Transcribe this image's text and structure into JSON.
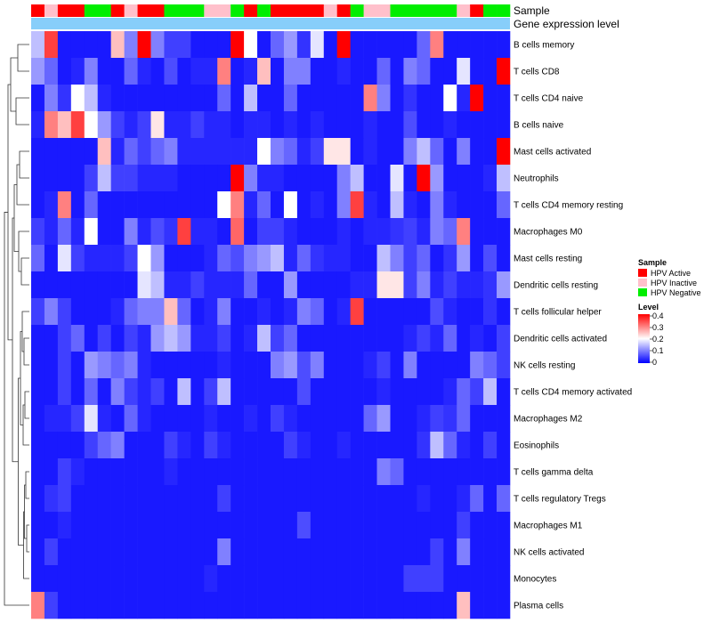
{
  "chart_data": {
    "type": "heatmap",
    "annotation_labels": {
      "sample": "Sample",
      "expression": "Gene expression level"
    },
    "rows": [
      "B cells memory",
      "T cells CD8",
      "T cells CD4 naive",
      "B cells naive",
      "Mast cells activated",
      "Neutrophils",
      "T cells CD4 memory resting",
      "Macrophages M0",
      "Mast cells resting",
      "Dendritic cells resting",
      "T cells follicular helper",
      "Dendritic cells activated",
      "NK cells resting",
      "T cells CD4 memory activated",
      "Macrophages M2",
      "Eosinophils",
      "T cells gamma delta",
      "T cells regulatory  Tregs",
      "Macrophages M1",
      "NK cells activated",
      "Monocytes",
      "Plasma cells"
    ],
    "sample_groups": [
      "A",
      "I",
      "A",
      "A",
      "N",
      "N",
      "A",
      "I",
      "A",
      "A",
      "N",
      "N",
      "N",
      "I",
      "I",
      "N",
      "A",
      "N",
      "A",
      "A",
      "A",
      "A",
      "I",
      "A",
      "N",
      "I",
      "I",
      "N",
      "N",
      "N",
      "N",
      "N",
      "I",
      "A",
      "N",
      "N"
    ],
    "values": [
      [
        0.15,
        0.35,
        0.02,
        0.02,
        0.02,
        0.02,
        0.25,
        0.1,
        0.4,
        0.1,
        0.05,
        0.05,
        0.02,
        0.02,
        0.02,
        0.4,
        0.2,
        0.02,
        0.08,
        0.12,
        0.04,
        0.18,
        0.02,
        0.4,
        0.02,
        0.02,
        0.02,
        0.02,
        0.02,
        0.08,
        0.3,
        0.02,
        0.02,
        0.02,
        0.02,
        0.02
      ],
      [
        0.12,
        0.08,
        0.02,
        0.03,
        0.1,
        0.02,
        0.02,
        0.08,
        0.03,
        0.02,
        0.06,
        0.02,
        0.03,
        0.03,
        0.3,
        0.02,
        0.03,
        0.25,
        0.02,
        0.1,
        0.1,
        0.02,
        0.02,
        0.03,
        0.02,
        0.02,
        0.08,
        0.02,
        0.1,
        0.08,
        0.02,
        0.02,
        0.18,
        0.02,
        0.02,
        0.4
      ],
      [
        0.02,
        0.1,
        0.04,
        0.2,
        0.15,
        0.03,
        0.02,
        0.02,
        0.02,
        0.02,
        0.02,
        0.02,
        0.02,
        0.02,
        0.08,
        0.02,
        0.15,
        0.02,
        0.02,
        0.08,
        0.02,
        0.02,
        0.02,
        0.02,
        0.02,
        0.3,
        0.1,
        0.02,
        0.04,
        0.02,
        0.02,
        0.2,
        0.03,
        0.4,
        0.02,
        0.02
      ],
      [
        0.03,
        0.3,
        0.25,
        0.35,
        0.2,
        0.12,
        0.05,
        0.03,
        0.05,
        0.22,
        0.03,
        0.03,
        0.05,
        0.03,
        0.03,
        0.02,
        0.03,
        0.03,
        0.02,
        0.03,
        0.02,
        0.03,
        0.02,
        0.02,
        0.02,
        0.03,
        0.02,
        0.02,
        0.06,
        0.02,
        0.02,
        0.03,
        0.02,
        0.02,
        0.02,
        0.02
      ],
      [
        0.02,
        0.02,
        0.02,
        0.02,
        0.02,
        0.25,
        0.03,
        0.08,
        0.05,
        0.08,
        0.1,
        0.03,
        0.03,
        0.03,
        0.03,
        0.03,
        0.03,
        0.2,
        0.1,
        0.08,
        0.03,
        0.05,
        0.22,
        0.22,
        0.02,
        0.03,
        0.02,
        0.02,
        0.1,
        0.15,
        0.08,
        0.02,
        0.1,
        0.02,
        0.02,
        0.4
      ],
      [
        0.02,
        0.02,
        0.02,
        0.02,
        0.05,
        0.15,
        0.05,
        0.05,
        0.03,
        0.03,
        0.03,
        0.02,
        0.02,
        0.02,
        0.02,
        0.4,
        0.1,
        0.03,
        0.03,
        0.02,
        0.02,
        0.02,
        0.02,
        0.1,
        0.15,
        0.02,
        0.02,
        0.18,
        0.02,
        0.4,
        0.12,
        0.02,
        0.02,
        0.02,
        0.03,
        0.15
      ],
      [
        0.02,
        0.03,
        0.3,
        0.02,
        0.08,
        0.02,
        0.02,
        0.02,
        0.02,
        0.02,
        0.02,
        0.02,
        0.02,
        0.02,
        0.2,
        0.3,
        0.03,
        0.08,
        0.02,
        0.2,
        0.02,
        0.03,
        0.02,
        0.1,
        0.35,
        0.03,
        0.02,
        0.15,
        0.03,
        0.02,
        0.1,
        0.03,
        0.02,
        0.02,
        0.02,
        0.08
      ],
      [
        0.05,
        0.03,
        0.08,
        0.03,
        0.2,
        0.02,
        0.02,
        0.1,
        0.03,
        0.06,
        0.04,
        0.35,
        0.03,
        0.03,
        0.02,
        0.32,
        0.02,
        0.05,
        0.05,
        0.03,
        0.02,
        0.02,
        0.02,
        0.03,
        0.02,
        0.03,
        0.03,
        0.04,
        0.05,
        0.03,
        0.1,
        0.08,
        0.3,
        0.02,
        0.02,
        0.02
      ],
      [
        0.08,
        0.02,
        0.18,
        0.05,
        0.03,
        0.03,
        0.03,
        0.05,
        0.2,
        0.12,
        0.02,
        0.02,
        0.02,
        0.03,
        0.08,
        0.06,
        0.1,
        0.12,
        0.15,
        0.03,
        0.08,
        0.04,
        0.03,
        0.03,
        0.02,
        0.02,
        0.15,
        0.1,
        0.05,
        0.08,
        0.02,
        0.04,
        0.12,
        0.02,
        0.06,
        0.02
      ],
      [
        0.02,
        0.02,
        0.02,
        0.02,
        0.02,
        0.02,
        0.02,
        0.02,
        0.18,
        0.15,
        0.03,
        0.03,
        0.05,
        0.03,
        0.03,
        0.03,
        0.08,
        0.02,
        0.02,
        0.12,
        0.02,
        0.02,
        0.02,
        0.02,
        0.03,
        0.03,
        0.22,
        0.22,
        0.05,
        0.1,
        0.03,
        0.05,
        0.03,
        0.03,
        0.04,
        0.12
      ],
      [
        0.05,
        0.1,
        0.05,
        0.02,
        0.02,
        0.02,
        0.03,
        0.08,
        0.1,
        0.1,
        0.25,
        0.08,
        0.02,
        0.03,
        0.1,
        0.02,
        0.02,
        0.03,
        0.02,
        0.03,
        0.1,
        0.08,
        0.02,
        0.03,
        0.35,
        0.02,
        0.02,
        0.02,
        0.02,
        0.02,
        0.06,
        0.03,
        0.02,
        0.02,
        0.04,
        0.02
      ],
      [
        0.02,
        0.02,
        0.05,
        0.08,
        0.02,
        0.05,
        0.02,
        0.05,
        0.03,
        0.12,
        0.15,
        0.12,
        0.03,
        0.03,
        0.05,
        0.02,
        0.03,
        0.15,
        0.05,
        0.08,
        0.02,
        0.02,
        0.02,
        0.02,
        0.02,
        0.02,
        0.02,
        0.02,
        0.03,
        0.05,
        0.03,
        0.08,
        0.02,
        0.03,
        0.02,
        0.05
      ],
      [
        0.02,
        0.02,
        0.05,
        0.02,
        0.12,
        0.1,
        0.08,
        0.1,
        0.03,
        0.02,
        0.02,
        0.02,
        0.02,
        0.02,
        0.03,
        0.02,
        0.02,
        0.02,
        0.1,
        0.12,
        0.06,
        0.1,
        0.02,
        0.02,
        0.02,
        0.03,
        0.05,
        0.02,
        0.1,
        0.02,
        0.02,
        0.02,
        0.02,
        0.1,
        0.08,
        0.05
      ],
      [
        0.02,
        0.02,
        0.05,
        0.02,
        0.08,
        0.02,
        0.1,
        0.05,
        0.03,
        0.05,
        0.02,
        0.15,
        0.02,
        0.05,
        0.15,
        0.02,
        0.02,
        0.02,
        0.02,
        0.02,
        0.06,
        0.02,
        0.02,
        0.02,
        0.02,
        0.02,
        0.03,
        0.02,
        0.02,
        0.02,
        0.02,
        0.03,
        0.08,
        0.05,
        0.15,
        0.02
      ],
      [
        0.02,
        0.03,
        0.03,
        0.05,
        0.18,
        0.03,
        0.02,
        0.08,
        0.03,
        0.02,
        0.02,
        0.02,
        0.02,
        0.03,
        0.02,
        0.02,
        0.03,
        0.02,
        0.05,
        0.03,
        0.02,
        0.02,
        0.02,
        0.02,
        0.02,
        0.08,
        0.12,
        0.02,
        0.02,
        0.03,
        0.05,
        0.04,
        0.08,
        0.02,
        0.02,
        0.02
      ],
      [
        0.02,
        0.02,
        0.02,
        0.02,
        0.05,
        0.08,
        0.1,
        0.02,
        0.02,
        0.02,
        0.05,
        0.03,
        0.02,
        0.05,
        0.03,
        0.02,
        0.02,
        0.02,
        0.02,
        0.05,
        0.03,
        0.02,
        0.02,
        0.03,
        0.02,
        0.02,
        0.02,
        0.02,
        0.02,
        0.04,
        0.15,
        0.08,
        0.03,
        0.02,
        0.05,
        0.02
      ],
      [
        0.02,
        0.02,
        0.05,
        0.03,
        0.02,
        0.02,
        0.02,
        0.02,
        0.02,
        0.02,
        0.03,
        0.02,
        0.02,
        0.02,
        0.02,
        0.02,
        0.02,
        0.02,
        0.02,
        0.02,
        0.02,
        0.02,
        0.02,
        0.02,
        0.02,
        0.02,
        0.1,
        0.08,
        0.02,
        0.02,
        0.02,
        0.02,
        0.02,
        0.02,
        0.02,
        0.02
      ],
      [
        0.02,
        0.04,
        0.05,
        0.02,
        0.02,
        0.02,
        0.02,
        0.02,
        0.02,
        0.02,
        0.02,
        0.02,
        0.02,
        0.02,
        0.05,
        0.02,
        0.02,
        0.02,
        0.02,
        0.02,
        0.02,
        0.02,
        0.02,
        0.02,
        0.02,
        0.02,
        0.02,
        0.02,
        0.02,
        0.03,
        0.02,
        0.02,
        0.03,
        0.08,
        0.02,
        0.08
      ],
      [
        0.02,
        0.02,
        0.03,
        0.02,
        0.02,
        0.02,
        0.02,
        0.02,
        0.02,
        0.02,
        0.02,
        0.02,
        0.02,
        0.02,
        0.02,
        0.02,
        0.02,
        0.02,
        0.02,
        0.02,
        0.06,
        0.02,
        0.02,
        0.02,
        0.02,
        0.02,
        0.02,
        0.02,
        0.02,
        0.02,
        0.02,
        0.02,
        0.05,
        0.02,
        0.02,
        0.02
      ],
      [
        0.02,
        0.05,
        0.02,
        0.02,
        0.02,
        0.02,
        0.02,
        0.02,
        0.02,
        0.02,
        0.02,
        0.02,
        0.02,
        0.02,
        0.1,
        0.02,
        0.02,
        0.02,
        0.02,
        0.02,
        0.02,
        0.02,
        0.02,
        0.02,
        0.02,
        0.02,
        0.02,
        0.02,
        0.02,
        0.02,
        0.05,
        0.02,
        0.1,
        0.02,
        0.02,
        0.02
      ],
      [
        0.02,
        0.02,
        0.02,
        0.02,
        0.02,
        0.02,
        0.02,
        0.02,
        0.02,
        0.02,
        0.02,
        0.02,
        0.02,
        0.03,
        0.02,
        0.02,
        0.02,
        0.02,
        0.02,
        0.02,
        0.02,
        0.02,
        0.02,
        0.02,
        0.02,
        0.02,
        0.02,
        0.02,
        0.05,
        0.05,
        0.05,
        0.02,
        0.02,
        0.02,
        0.02,
        0.02
      ],
      [
        0.3,
        0.05,
        0.02,
        0.02,
        0.02,
        0.02,
        0.02,
        0.02,
        0.02,
        0.02,
        0.02,
        0.02,
        0.02,
        0.02,
        0.02,
        0.02,
        0.02,
        0.02,
        0.02,
        0.02,
        0.02,
        0.02,
        0.02,
        0.02,
        0.02,
        0.02,
        0.02,
        0.02,
        0.02,
        0.02,
        0.02,
        0.02,
        0.25,
        0.02,
        0.02,
        0.02
      ]
    ],
    "sample_legend": {
      "title": "Sample",
      "entries": [
        {
          "key": "A",
          "label": "HPV Active",
          "color": "#ff0000"
        },
        {
          "key": "I",
          "label": "HPV Inactive",
          "color": "#ffc0cb"
        },
        {
          "key": "N",
          "label": "HPV Negative",
          "color": "#00ee00"
        }
      ]
    },
    "level_legend": {
      "title": "Level",
      "ticks": [
        "0.4",
        "0.3",
        "0.2",
        "0.1",
        "0"
      ],
      "range": [
        0,
        0.4
      ]
    },
    "colors": {
      "low": "#0000ff",
      "mid": "#ffffff",
      "high": "#ff0000",
      "expression_bar": "#87cefa"
    }
  }
}
